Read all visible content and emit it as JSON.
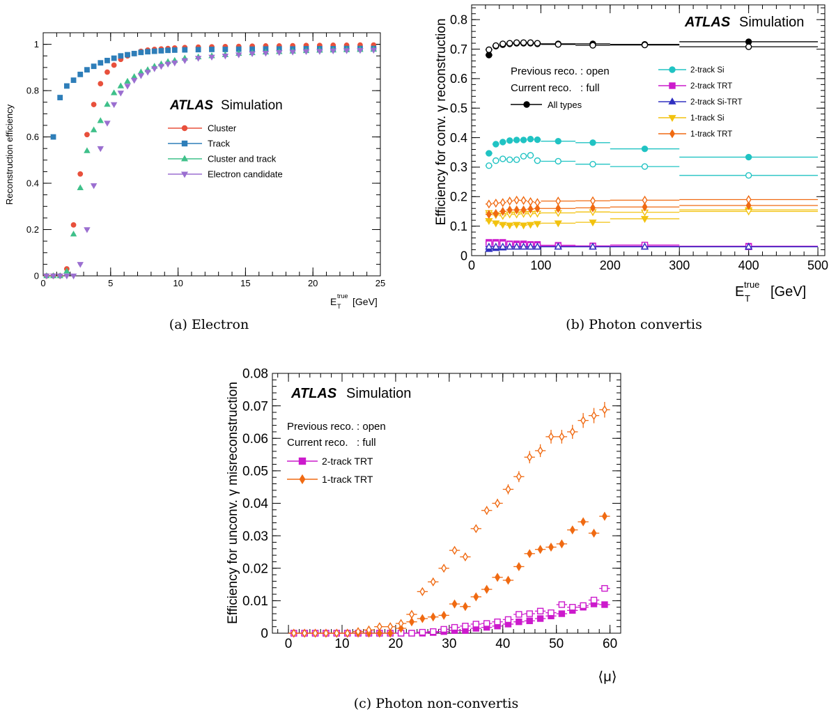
{
  "chart_data": [
    {
      "type": "scatter",
      "caption": "(a) Electron",
      "ylabel": "Reconstruction efficiency",
      "xlabel": {
        "main": "E",
        "sub": "T",
        "sup": "true",
        "unit": "[GeV]"
      },
      "xlim": [
        0,
        25
      ],
      "ylim": [
        0,
        1.05
      ],
      "xticks": [
        "0",
        "5",
        "10",
        "15",
        "20",
        "25"
      ],
      "yticks": [
        "0",
        "0.2",
        "0.4",
        "0.6",
        "0.8",
        "1"
      ],
      "atlas_label": "ATLAS",
      "simulation_label": "Simulation",
      "legend_position": "center-right",
      "series": [
        {
          "name": "Cluster",
          "color": "#e8503c",
          "marker": "circle",
          "x": [
            0.25,
            0.75,
            1.25,
            1.75,
            2.25,
            2.75,
            3.25,
            3.75,
            4.25,
            4.75,
            5.25,
            5.75,
            6.25,
            6.75,
            7.25,
            7.75,
            8.25,
            8.75,
            9.25,
            9.75,
            10.5,
            11.5,
            12.5,
            13.5,
            14.5,
            15.5,
            16.5,
            17.5,
            18.5,
            19.5,
            20.5,
            21.5,
            22.5,
            23.5,
            24.5
          ],
          "y": [
            0.0,
            0.0,
            0.0,
            0.03,
            0.22,
            0.44,
            0.61,
            0.74,
            0.83,
            0.88,
            0.91,
            0.935,
            0.95,
            0.96,
            0.97,
            0.975,
            0.978,
            0.98,
            0.982,
            0.984,
            0.986,
            0.988,
            0.989,
            0.99,
            0.991,
            0.992,
            0.993,
            0.993,
            0.994,
            0.995,
            0.995,
            0.996,
            0.996,
            0.997,
            0.997
          ]
        },
        {
          "name": "Track",
          "color": "#2e7eb9",
          "marker": "square",
          "x": [
            0.75,
            1.25,
            1.75,
            2.25,
            2.75,
            3.25,
            3.75,
            4.25,
            4.75,
            5.25,
            5.75,
            6.25,
            6.75,
            7.25,
            7.75,
            8.25,
            8.75,
            9.25,
            9.75,
            10.5,
            11.5,
            12.5,
            13.5,
            14.5,
            15.5,
            16.5,
            17.5,
            18.5,
            19.5,
            20.5,
            21.5,
            22.5,
            23.5,
            24.5
          ],
          "y": [
            0.6,
            0.77,
            0.82,
            0.845,
            0.87,
            0.89,
            0.905,
            0.92,
            0.93,
            0.94,
            0.95,
            0.955,
            0.96,
            0.965,
            0.968,
            0.97,
            0.972,
            0.974,
            0.975,
            0.976,
            0.977,
            0.978,
            0.978,
            0.979,
            0.979,
            0.98,
            0.98,
            0.98,
            0.981,
            0.981,
            0.981,
            0.982,
            0.982,
            0.982
          ]
        },
        {
          "name": "Cluster and track",
          "color": "#3fc08a",
          "marker": "triangle-up",
          "x": [
            0.25,
            0.75,
            1.25,
            1.75,
            2.25,
            2.75,
            3.25,
            3.75,
            4.25,
            4.75,
            5.25,
            5.75,
            6.25,
            6.75,
            7.25,
            7.75,
            8.25,
            8.75,
            9.25,
            9.75,
            10.5,
            11.5,
            12.5,
            13.5,
            14.5,
            15.5,
            16.5,
            17.5,
            18.5,
            19.5,
            20.5,
            21.5,
            22.5,
            23.5,
            24.5
          ],
          "y": [
            0.0,
            0.0,
            0.0,
            0.02,
            0.18,
            0.38,
            0.54,
            0.63,
            0.67,
            0.74,
            0.79,
            0.82,
            0.84,
            0.86,
            0.88,
            0.89,
            0.905,
            0.915,
            0.925,
            0.93,
            0.94,
            0.945,
            0.95,
            0.955,
            0.96,
            0.963,
            0.966,
            0.968,
            0.97,
            0.972,
            0.974,
            0.975,
            0.976,
            0.977,
            0.978
          ]
        },
        {
          "name": "Electron candidate",
          "color": "#9b6fd0",
          "marker": "triangle-down",
          "x": [
            0.25,
            0.75,
            1.25,
            1.75,
            2.25,
            2.75,
            3.25,
            3.75,
            4.25,
            4.75,
            5.25,
            5.75,
            6.25,
            6.75,
            7.25,
            7.75,
            8.25,
            8.75,
            9.25,
            9.75,
            10.5,
            11.5,
            12.5,
            13.5,
            14.5,
            15.5,
            16.5,
            17.5,
            18.5,
            19.5,
            20.5,
            21.5,
            22.5,
            23.5,
            24.5
          ],
          "y": [
            0.0,
            0.0,
            0.0,
            0.0,
            0.0,
            0.05,
            0.2,
            0.39,
            0.55,
            0.66,
            0.74,
            0.79,
            0.82,
            0.845,
            0.865,
            0.88,
            0.895,
            0.905,
            0.915,
            0.92,
            0.93,
            0.94,
            0.945,
            0.95,
            0.955,
            0.96,
            0.962,
            0.965,
            0.967,
            0.969,
            0.97,
            0.972,
            0.973,
            0.974,
            0.975
          ]
        }
      ]
    },
    {
      "type": "scatter",
      "caption": "(b) Photon convertis",
      "ylabel": "Efficiency for conv. γ reconstruction",
      "xlabel": {
        "main": "E",
        "sub": "T",
        "sup": "true",
        "unit": "[GeV]"
      },
      "xlim": [
        0,
        510
      ],
      "ylim": [
        0,
        0.85
      ],
      "xticks": [
        "0",
        "100",
        "200",
        "300",
        "400",
        "500"
      ],
      "yticks": [
        "0",
        "0.1",
        "0.2",
        "0.3",
        "0.4",
        "0.5",
        "0.6",
        "0.7",
        "0.8"
      ],
      "atlas_label": "ATLAS",
      "simulation_label": "Simulation",
      "legend_text": [
        "Previous reco. : open",
        "Current reco.   : full"
      ],
      "legend_position": "top",
      "x_bins": {
        "centers": [
          25,
          35,
          45,
          55,
          65,
          75,
          85,
          95,
          125,
          175,
          250,
          400
        ],
        "low": [
          20,
          30,
          40,
          50,
          60,
          70,
          80,
          90,
          100,
          150,
          200,
          300
        ],
        "high": [
          30,
          40,
          50,
          60,
          70,
          80,
          90,
          100,
          150,
          200,
          300,
          500
        ]
      },
      "series": [
        {
          "name": "All types",
          "color": "#000000",
          "marker": "circle",
          "full": [
            0.68,
            0.71,
            0.715,
            0.718,
            0.72,
            0.72,
            0.72,
            0.718,
            0.718,
            0.718,
            0.716,
            0.725
          ],
          "open": [
            0.698,
            0.712,
            0.718,
            0.72,
            0.722,
            0.722,
            0.722,
            0.72,
            0.716,
            0.713,
            0.714,
            0.708
          ]
        },
        {
          "name": "2-track Si",
          "color": "#20c3c3",
          "marker": "circle",
          "full": [
            0.347,
            0.378,
            0.385,
            0.39,
            0.392,
            0.392,
            0.395,
            0.393,
            0.388,
            0.383,
            0.362,
            0.334
          ],
          "open": [
            0.305,
            0.322,
            0.328,
            0.325,
            0.325,
            0.337,
            0.34,
            0.322,
            0.32,
            0.31,
            0.302,
            0.272
          ]
        },
        {
          "name": "2-track TRT",
          "color": "#cc1acc",
          "marker": "square",
          "full": [
            0.045,
            0.045,
            0.045,
            0.04,
            0.04,
            0.04,
            0.038,
            0.038,
            0.035,
            0.033,
            0.032,
            0.032
          ],
          "open": [
            0.04,
            0.04,
            0.04,
            0.038,
            0.035,
            0.035,
            0.035,
            0.034,
            0.033,
            0.032,
            0.036,
            0.03
          ]
        },
        {
          "name": "2-track Si-TRT",
          "color": "#3030c0",
          "marker": "triangle-up",
          "full": [
            0.022,
            0.025,
            0.027,
            0.03,
            0.03,
            0.03,
            0.03,
            0.03,
            0.03,
            0.03,
            0.03,
            0.03
          ],
          "open": [
            0.03,
            0.03,
            0.03,
            0.03,
            0.03,
            0.03,
            0.03,
            0.03,
            0.03,
            0.03,
            0.03,
            0.03
          ]
        },
        {
          "name": "1-track Si",
          "color": "#f2c20f",
          "marker": "triangle-down",
          "full": [
            0.118,
            0.11,
            0.105,
            0.103,
            0.105,
            0.103,
            0.105,
            0.108,
            0.11,
            0.113,
            0.125,
            0.155
          ],
          "open": [
            0.145,
            0.138,
            0.135,
            0.14,
            0.14,
            0.142,
            0.142,
            0.143,
            0.145,
            0.148,
            0.147,
            0.15
          ]
        },
        {
          "name": "1-track TRT",
          "color": "#f06a12",
          "marker": "diamond",
          "full": [
            0.14,
            0.143,
            0.15,
            0.155,
            0.155,
            0.155,
            0.158,
            0.16,
            0.16,
            0.162,
            0.165,
            0.17
          ],
          "open": [
            0.175,
            0.178,
            0.18,
            0.185,
            0.188,
            0.187,
            0.183,
            0.18,
            0.185,
            0.186,
            0.188,
            0.19
          ]
        }
      ]
    },
    {
      "type": "scatter",
      "caption": "(c) Photon non-convertis",
      "ylabel": "Efficiency for unconv. γ misreconstruction",
      "xlabel": {
        "main": "⟨μ⟩"
      },
      "xlim": [
        -3,
        62
      ],
      "ylim": [
        0,
        0.08
      ],
      "xticks": [
        "0",
        "10",
        "20",
        "30",
        "40",
        "50",
        "60"
      ],
      "yticks": [
        "0",
        "0.01",
        "0.02",
        "0.03",
        "0.04",
        "0.05",
        "0.06",
        "0.07",
        "0.08"
      ],
      "atlas_label": "ATLAS",
      "simulation_label": "Simulation",
      "legend_text": [
        "Previous reco. : open",
        "Current reco.   : full"
      ],
      "legend_position": "top-left",
      "x": [
        1,
        3,
        5,
        7,
        9,
        11,
        13,
        15,
        17,
        19,
        21,
        23,
        25,
        27,
        29,
        31,
        33,
        35,
        37,
        39,
        41,
        43,
        45,
        47,
        49,
        51,
        53,
        55,
        57,
        59
      ],
      "series": [
        {
          "name": "2-track TRT",
          "color": "#cc1acc",
          "marker": "square",
          "full": [
            0,
            0,
            0,
            0,
            0,
            0,
            0,
            0,
            0,
            0,
            0,
            0,
            0,
            0.0002,
            0.0005,
            0.0008,
            0.0008,
            0.0015,
            0.0018,
            0.0022,
            0.0028,
            0.0035,
            0.0038,
            0.0045,
            0.0053,
            0.006,
            0.007,
            0.008,
            0.009,
            0.0088
          ],
          "open": [
            0,
            0,
            0,
            0,
            0,
            0,
            0,
            0,
            0,
            0,
            0,
            0,
            0.0003,
            0.0005,
            0.0012,
            0.0018,
            0.0022,
            0.0028,
            0.003,
            0.0035,
            0.0042,
            0.0058,
            0.006,
            0.0068,
            0.0063,
            0.0088,
            0.008,
            0.0085,
            0.0102,
            0.0138
          ]
        },
        {
          "name": "1-track TRT",
          "color": "#f06a12",
          "marker": "diamond",
          "full": [
            0,
            0,
            0,
            0,
            0,
            0,
            0,
            0,
            0,
            0,
            0.0015,
            0.0035,
            0.0045,
            0.005,
            0.0055,
            0.009,
            0.0082,
            0.0112,
            0.0135,
            0.0172,
            0.0163,
            0.0205,
            0.0245,
            0.0258,
            0.0265,
            0.0275,
            0.0318,
            0.0343,
            0.0308,
            0.036
          ],
          "open": [
            0,
            0,
            0,
            0,
            0,
            0,
            0.0005,
            0.001,
            0.002,
            0.002,
            0.003,
            0.0058,
            0.0128,
            0.0158,
            0.02,
            0.0255,
            0.0235,
            0.0322,
            0.0378,
            0.04,
            0.0443,
            0.0482,
            0.0542,
            0.0562,
            0.0605,
            0.0605,
            0.062,
            0.0655,
            0.067,
            0.0688
          ]
        }
      ]
    }
  ],
  "colors": {
    "axis": "#000000",
    "background": "#ffffff"
  }
}
